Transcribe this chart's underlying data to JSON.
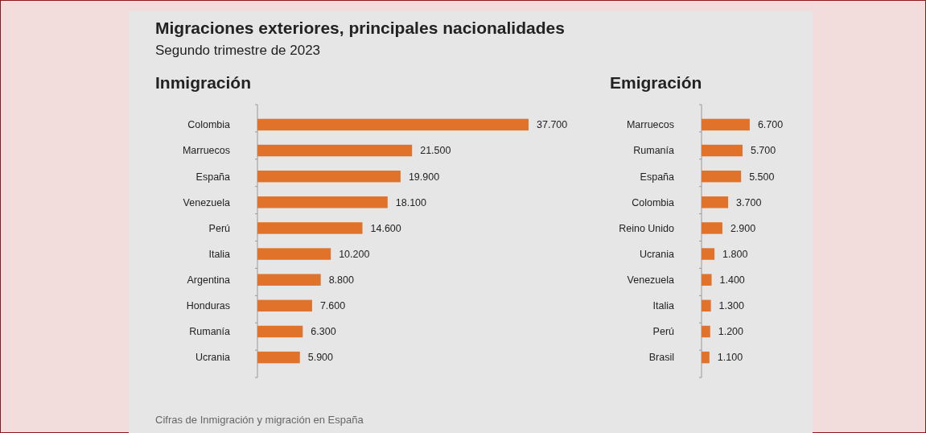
{
  "chart_data": [
    {
      "type": "other",
      "title": "Migraciones exteriores, principales nacionalidades",
      "subtitle": "Segundo trimestre de 2023",
      "annotations": [
        "Cifras de Inmigración y migración en España"
      ]
    },
    {
      "type": "bar",
      "orientation": "horizontal",
      "title": "Inmigración",
      "categories": [
        "Colombia",
        "Marruecos",
        "España",
        "Venezuela",
        "Perú",
        "Italia",
        "Argentina",
        "Honduras",
        "Rumanía",
        "Ucrania"
      ],
      "values": [
        37700,
        21500,
        19900,
        18100,
        14600,
        10200,
        8800,
        7600,
        6300,
        5900
      ],
      "value_labels": [
        "37.700",
        "21.500",
        "19.900",
        "18.100",
        "14.600",
        "10.200",
        "8.800",
        "7.600",
        "6.300",
        "5.900"
      ],
      "color": "#e0722a"
    },
    {
      "type": "bar",
      "orientation": "horizontal",
      "title": "Emigración",
      "categories": [
        "Marruecos",
        "Rumanía",
        "España",
        "Colombia",
        "Reino Unido",
        "Ucrania",
        "Venezuela",
        "Italia",
        "Perú",
        "Brasil"
      ],
      "values": [
        6700,
        5700,
        5500,
        3700,
        2900,
        1800,
        1400,
        1300,
        1200,
        1100
      ],
      "value_labels": [
        "6.700",
        "5.700",
        "5.500",
        "3.700",
        "2.900",
        "1.800",
        "1.400",
        "1.300",
        "1.200",
        "1.100"
      ],
      "color": "#e0722a"
    }
  ]
}
